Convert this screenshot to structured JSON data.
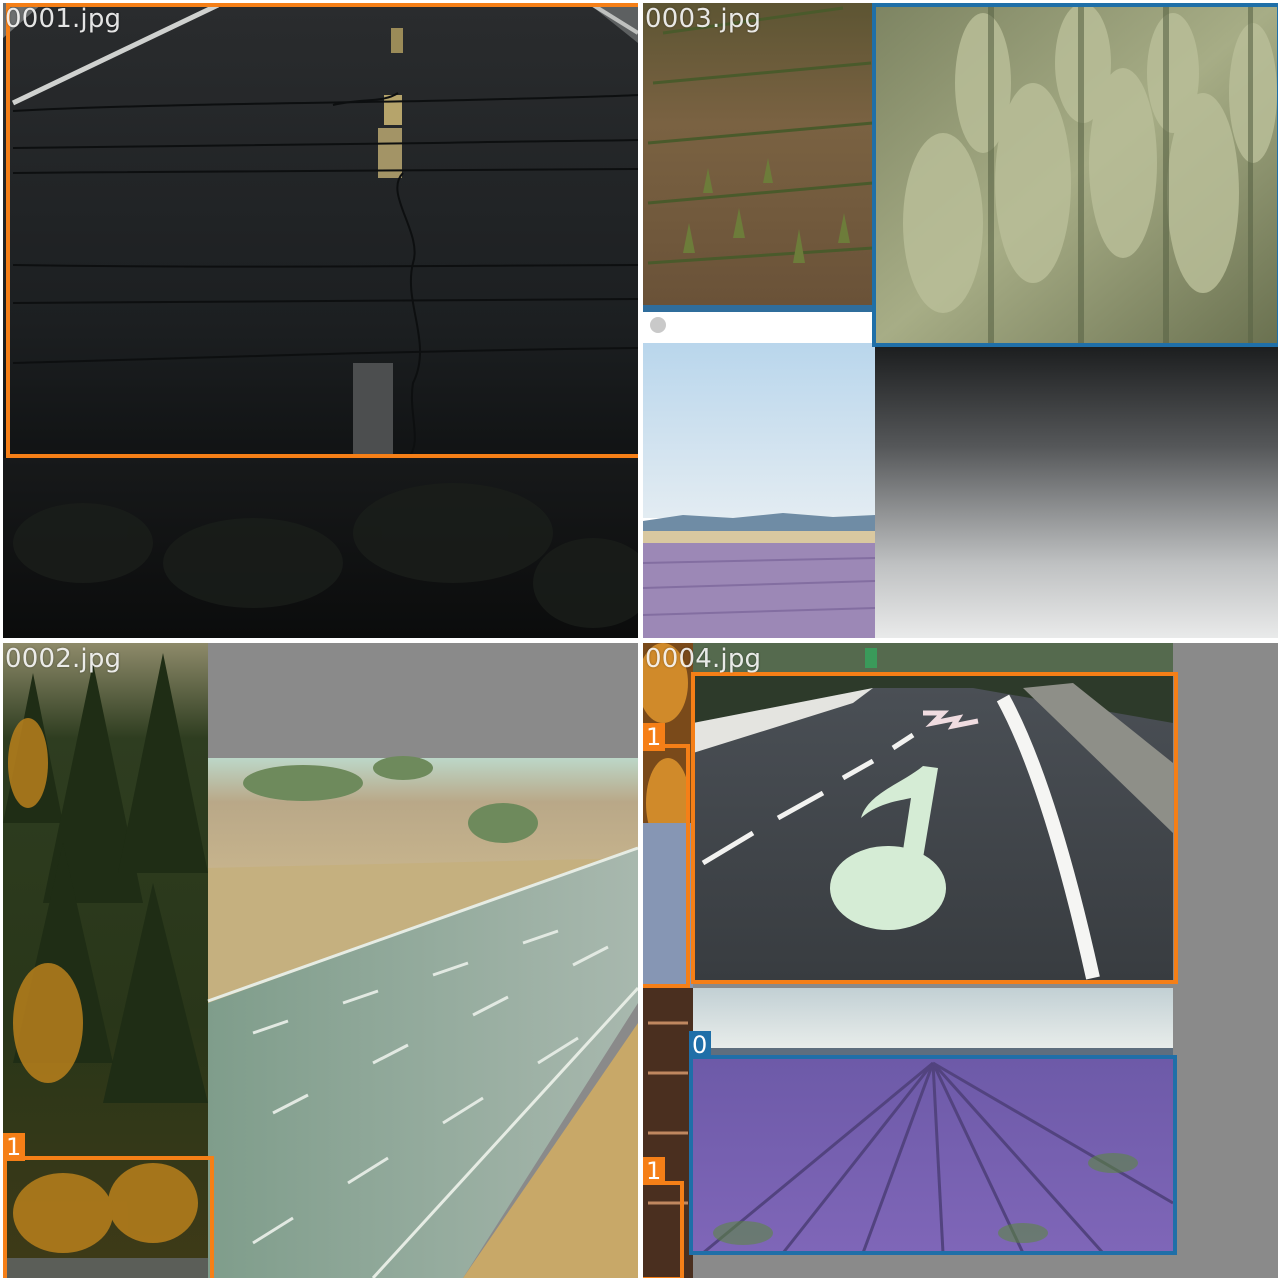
{
  "mosaic": {
    "tiles": [
      {
        "filename": "0001.jpg",
        "boxes": [
          {
            "class_label": "",
            "color": "#f57f17",
            "scene": "cracked asphalt road with lane markings"
          }
        ]
      },
      {
        "filename": "0003.jpg",
        "boxes": [
          {
            "class_label": "",
            "color": "#1f6fa8",
            "scene": "green wheat field"
          }
        ]
      },
      {
        "filename": "0002.jpg",
        "boxes": [
          {
            "class_label": "1",
            "color": "#f57f17",
            "scene": "forest road edge"
          }
        ]
      },
      {
        "filename": "0004.jpg",
        "boxes": [
          {
            "class_label": "1",
            "color": "#f57f17",
            "scene": "road with music note marking"
          },
          {
            "class_label": "1",
            "color": "#f57f17",
            "scene": "roadside strip"
          },
          {
            "class_label": "1",
            "color": "#f57f17",
            "scene": "building edge"
          },
          {
            "class_label": "0",
            "color": "#1f6fa8",
            "scene": "lavender field"
          }
        ]
      }
    ]
  },
  "colors": {
    "road_class": "#f57f17",
    "field_class": "#1f6fa8",
    "letterbox_gray": "#8a8a8a"
  }
}
